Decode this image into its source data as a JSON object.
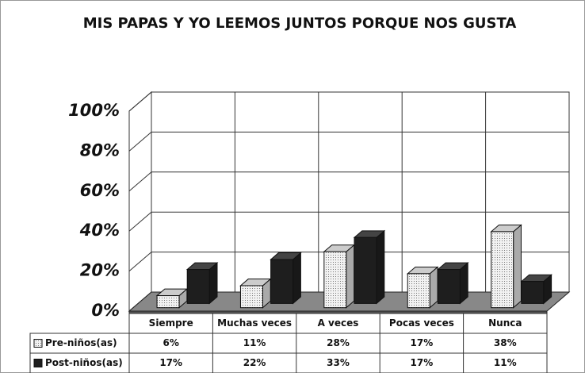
{
  "chart_data": {
    "type": "bar3d",
    "title": "MIS PAPAS Y YO LEEMOS JUNTOS PORQUE NOS GUSTA",
    "categories": [
      "Siempre",
      "Muchas veces",
      "A veces",
      "Pocas veces",
      "Nunca"
    ],
    "series": [
      {
        "name": "Pre-niños(as)",
        "color": "#e8e8e8",
        "values": [
          6,
          11,
          28,
          17,
          38
        ],
        "value_labels": [
          "6%",
          "11%",
          "28%",
          "17%",
          "38%"
        ]
      },
      {
        "name": "Post-niños(as)",
        "color": "#1e1e1e",
        "values": [
          17,
          22,
          33,
          17,
          11
        ],
        "value_labels": [
          "17%",
          "22%",
          "33%",
          "17%",
          "11%"
        ]
      }
    ],
    "ylim": [
      0,
      100
    ],
    "yticks": [
      {
        "value": 0,
        "label": "0%"
      },
      {
        "value": 20,
        "label": "20%"
      },
      {
        "value": 40,
        "label": "40%"
      },
      {
        "value": 60,
        "label": "60%"
      },
      {
        "value": 80,
        "label": "80%"
      },
      {
        "value": 100,
        "label": "100%"
      }
    ],
    "grid": true
  }
}
